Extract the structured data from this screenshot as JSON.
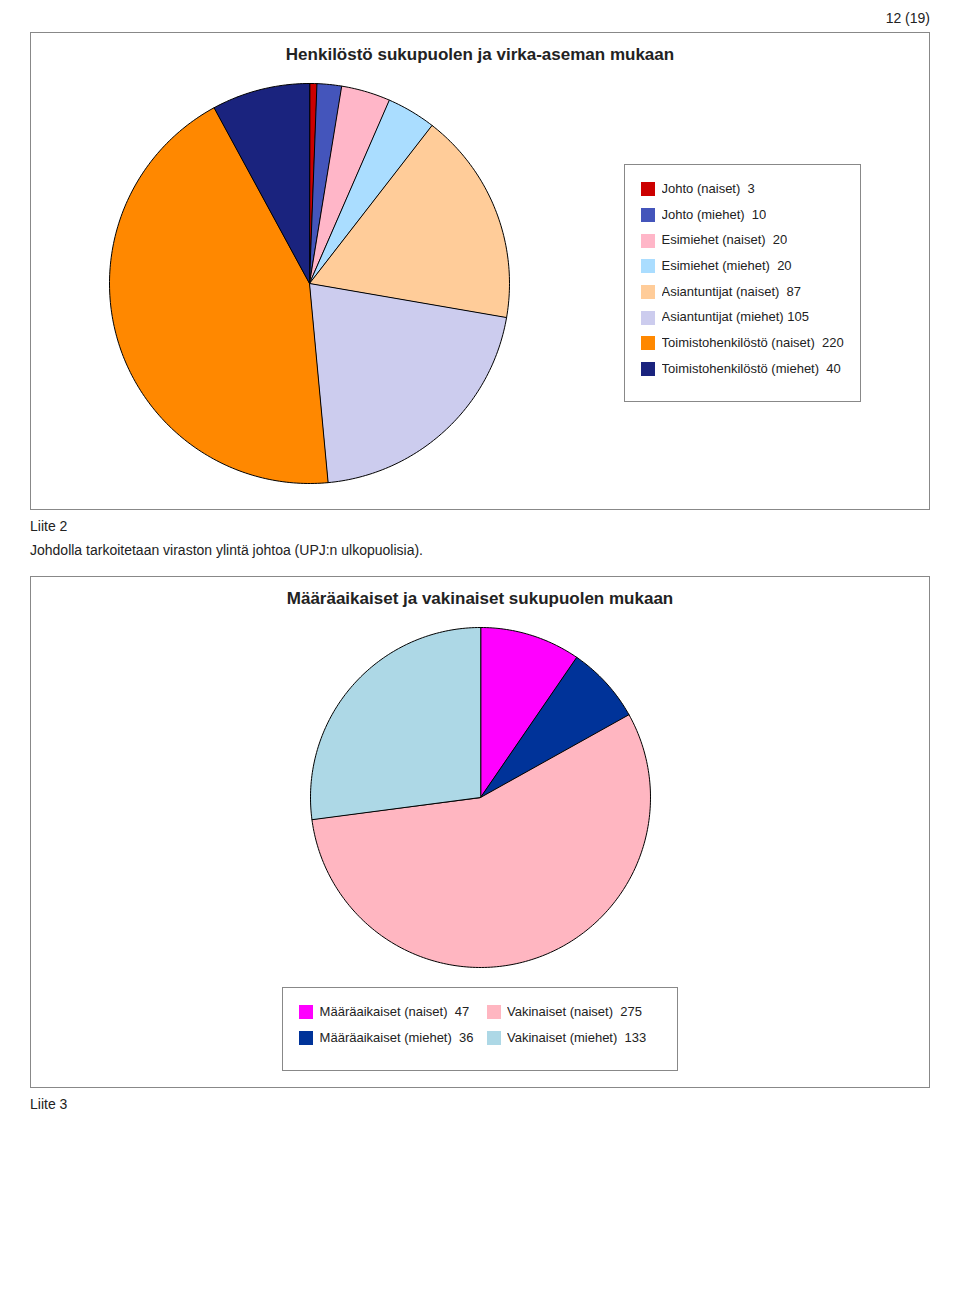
{
  "annotations": [
    "12 (19)"
  ],
  "chart_data": [
    {
      "type": "pie",
      "title": "Henkilöstö sukupuolen ja virka-aseman mukaan",
      "categories": [
        "Johto (naiset)  3",
        "Johto (miehet)  10",
        "Esimiehet (naiset)  20",
        "Esimiehet (miehet)  20",
        "Asiantuntijat (naiset)  87",
        "Asiantuntijat (miehet) 105",
        "Toimistohenkilöstö (naiset)  220",
        "Toimistohenkilöstö (miehet)  40"
      ],
      "values": [
        3,
        10,
        20,
        20,
        87,
        105,
        220,
        40
      ],
      "colors": [
        "#CC0000",
        "#4455BB",
        "#FFB6C8",
        "#AADDFF",
        "#FFCC99",
        "#CCCCEE",
        "#FF8800",
        "#1A237E"
      ],
      "legend": "right",
      "annotations": [
        "Liite 2",
        "Johdolla tarkoitetaan viraston ylintä johtoa (UPJ:n ulkopuolisia)."
      ]
    },
    {
      "type": "pie",
      "title": "Määräaikaiset ja vakinaiset sukupuolen mukaan",
      "categories": [
        "Määräaikaiset (naiset)  47",
        "Määräaikaiset (miehet)  36",
        "Vakinaiset (naiset)  275",
        "Vakinaiset (miehet)  133"
      ],
      "values": [
        47,
        36,
        275,
        133
      ],
      "colors": [
        "#FF00FF",
        "#003399",
        "#FFB6C1",
        "#ADD8E6"
      ],
      "legend": "bottom",
      "annotations": [
        "Liite 3"
      ]
    }
  ]
}
